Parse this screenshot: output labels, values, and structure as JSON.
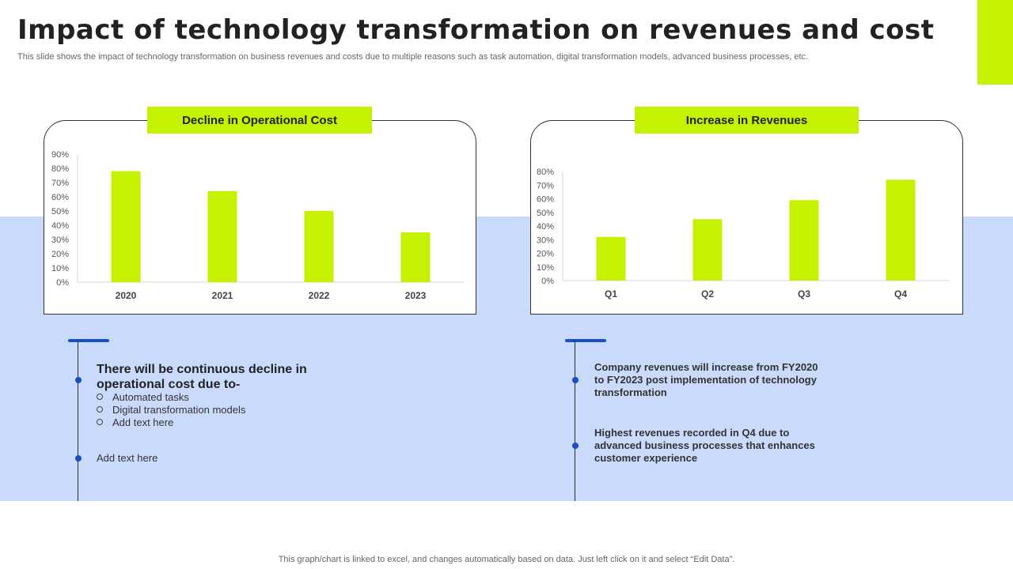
{
  "title": "Impact of technology transformation on revenues and cost",
  "subtitle": "This slide shows the impact of technology transformation on business revenues and costs due to multiple reasons such as task automation, digital transformation models, advanced business processes, etc.",
  "colors": {
    "accent": "#c5f200",
    "band": "#c9dafc",
    "timeline": "#1a4fc4"
  },
  "left_card": {
    "label": "Decline in Operational Cost"
  },
  "right_card": {
    "label": "Increase in Revenues"
  },
  "chart_data": [
    {
      "type": "bar",
      "title": "Decline in Operational Cost",
      "categories": [
        "2020",
        "2021",
        "2022",
        "2023"
      ],
      "values": [
        78,
        64,
        50,
        35
      ],
      "unit": "%",
      "ylim": [
        0,
        90
      ],
      "yticks": [
        "0%",
        "10%",
        "20%",
        "30%",
        "40%",
        "50%",
        "60%",
        "70%",
        "80%",
        "90%"
      ],
      "grid": false,
      "color": "#c5f200"
    },
    {
      "type": "bar",
      "title": "Increase in Revenues",
      "categories": [
        "Q1",
        "Q2",
        "Q3",
        "Q4"
      ],
      "values": [
        32,
        45,
        59,
        74
      ],
      "unit": "%",
      "ylim": [
        0,
        80
      ],
      "yticks": [
        "0%",
        "10%",
        "20%",
        "30%",
        "40%",
        "50%",
        "60%",
        "70%",
        "80%"
      ],
      "grid": false,
      "color": "#c5f200"
    }
  ],
  "left_notes": {
    "heading": "There will be continuous decline in operational cost due to-",
    "bullets": [
      "Automated tasks",
      "Digital transformation models",
      "Add text here"
    ],
    "extra": "Add text here"
  },
  "right_notes": {
    "point1": "Company revenues will increase from FY2020 to FY2023 post implementation of technology transformation",
    "point2": "Highest revenues recorded in Q4 due to advanced business processes that enhances customer experience"
  },
  "footer": "This graph/chart is linked to excel, and changes automatically based on data. Just left click on it and select “Edit Data”."
}
